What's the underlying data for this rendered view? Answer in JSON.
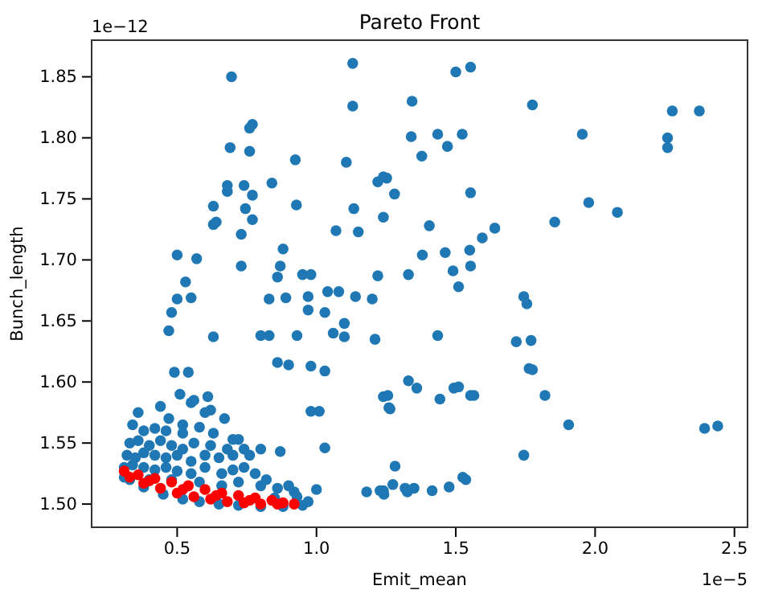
{
  "chart_data": {
    "type": "scatter",
    "title": "Pareto Front",
    "xlabel": "Emit_mean",
    "ylabel": "Bunch_length",
    "annotations": [
      "1e−5",
      "1e−12"
    ],
    "marker": "circle",
    "grid": false,
    "xlim": [
      0.193,
      2.547
    ],
    "xticks": [
      {
        "value": 0.5,
        "label": "0.5"
      },
      {
        "value": 1.0,
        "label": "1.0"
      },
      {
        "value": 1.5,
        "label": "1.5"
      },
      {
        "value": 2.0,
        "label": "2.0"
      },
      {
        "value": 2.5,
        "label": "2.5"
      }
    ],
    "ylim": [
      1.481,
      1.88
    ],
    "yticks": [
      {
        "value": 1.5,
        "label": "1.50"
      },
      {
        "value": 1.55,
        "label": "1.55"
      },
      {
        "value": 1.6,
        "label": "1.60"
      },
      {
        "value": 1.65,
        "label": "1.65"
      },
      {
        "value": 1.7,
        "label": "1.70"
      },
      {
        "value": 1.75,
        "label": "1.75"
      },
      {
        "value": 1.8,
        "label": "1.80"
      },
      {
        "value": 1.85,
        "label": "1.85"
      }
    ],
    "series": [
      {
        "color": "#1f77b4",
        "x": [
          0.695,
          1.13,
          1.13,
          0.77,
          0.76,
          0.69,
          0.76,
          1.107,
          0.924,
          0.68,
          0.74,
          0.68,
          0.77,
          0.84,
          0.63,
          0.745,
          0.928,
          0.63,
          0.64,
          0.77,
          0.73,
          1.134,
          1.15,
          1.07,
          1.22,
          1.24,
          1.24,
          0.5,
          0.57,
          0.73,
          0.53,
          0.5,
          0.55,
          0.48,
          0.47,
          0.63,
          0.88,
          0.87,
          0.86,
          0.95,
          0.98,
          0.83,
          0.89,
          0.97,
          0.97,
          1.03,
          1.04,
          1.08,
          1.1,
          1.06,
          1.1,
          1.14,
          1.2,
          1.22,
          1.21,
          0.8,
          0.83,
          0.93,
          0.86,
          0.9,
          0.98,
          1.03,
          0.49,
          0.54,
          0.51,
          0.61,
          0.62,
          0.55,
          0.98,
          1.01,
          1.24,
          1.26,
          0.87,
          1.03,
          1.18,
          1.0,
          1.24,
          1.5,
          1.553,
          1.343,
          1.775,
          2.277,
          2.374,
          1.34,
          1.435,
          1.523,
          1.47,
          1.378,
          1.954,
          2.26,
          2.26,
          1.252,
          1.28,
          1.553,
          1.977,
          2.08,
          1.855,
          1.405,
          1.64,
          1.595,
          1.38,
          1.462,
          1.55,
          1.49,
          1.553,
          1.33,
          1.51,
          1.744,
          1.755,
          1.435,
          1.717,
          1.77,
          1.763,
          1.775,
          1.33,
          1.36,
          1.256,
          1.264,
          1.443,
          1.493,
          1.51,
          1.553,
          1.565,
          1.82,
          1.905,
          2.393,
          2.44,
          1.744,
          1.282,
          1.274,
          1.228,
          1.242,
          1.318,
          1.326,
          1.35,
          1.415,
          1.476,
          1.525,
          1.536,
          0.36,
          0.44,
          0.47,
          0.56,
          0.6,
          0.67,
          0.34,
          0.38,
          0.42,
          0.46,
          0.52,
          0.58,
          0.63,
          0.33,
          0.36,
          0.4,
          0.44,
          0.48,
          0.52,
          0.56,
          0.62,
          0.7,
          0.72,
          0.32,
          0.35,
          0.38,
          0.42,
          0.46,
          0.5,
          0.55,
          0.6,
          0.65,
          0.7,
          0.76,
          0.8,
          0.31,
          0.34,
          0.38,
          0.42,
          0.46,
          0.5,
          0.55,
          0.6,
          0.66,
          0.7,
          0.74,
          0.78,
          0.33,
          0.4,
          0.48,
          0.58,
          0.66,
          0.72,
          0.8,
          0.86,
          0.9,
          0.92,
          0.31,
          0.38,
          0.45,
          0.52,
          0.58,
          0.65,
          0.72,
          0.8,
          0.88,
          0.95,
          0.97,
          0.85,
          0.93,
          0.52,
          0.68,
          0.74,
          0.82
        ],
        "values": [
          1.85,
          1.861,
          1.826,
          1.811,
          1.808,
          1.792,
          1.789,
          1.78,
          1.782,
          1.761,
          1.761,
          1.756,
          1.753,
          1.763,
          1.744,
          1.742,
          1.745,
          1.729,
          1.731,
          1.733,
          1.721,
          1.742,
          1.723,
          1.724,
          1.764,
          1.768,
          1.735,
          1.704,
          1.701,
          1.695,
          1.682,
          1.668,
          1.669,
          1.657,
          1.642,
          1.637,
          1.709,
          1.695,
          1.686,
          1.688,
          1.688,
          1.668,
          1.669,
          1.67,
          1.659,
          1.657,
          1.674,
          1.674,
          1.648,
          1.64,
          1.637,
          1.67,
          1.668,
          1.687,
          1.635,
          1.638,
          1.638,
          1.638,
          1.616,
          1.614,
          1.613,
          1.609,
          1.608,
          1.608,
          1.59,
          1.588,
          1.577,
          1.583,
          1.576,
          1.576,
          1.588,
          1.579,
          1.543,
          1.546,
          1.51,
          1.512,
          1.511,
          1.854,
          1.858,
          1.83,
          1.827,
          1.822,
          1.822,
          1.801,
          1.803,
          1.803,
          1.793,
          1.785,
          1.803,
          1.8,
          1.792,
          1.767,
          1.754,
          1.755,
          1.747,
          1.739,
          1.731,
          1.728,
          1.726,
          1.718,
          1.704,
          1.706,
          1.708,
          1.691,
          1.695,
          1.688,
          1.678,
          1.67,
          1.664,
          1.638,
          1.633,
          1.634,
          1.611,
          1.61,
          1.601,
          1.595,
          1.589,
          1.578,
          1.586,
          1.595,
          1.596,
          1.589,
          1.589,
          1.589,
          1.565,
          1.562,
          1.564,
          1.54,
          1.531,
          1.516,
          1.511,
          1.508,
          1.513,
          1.51,
          1.513,
          1.511,
          1.514,
          1.522,
          1.52,
          1.575,
          1.58,
          1.57,
          1.585,
          1.575,
          1.57,
          1.565,
          1.56,
          1.562,
          1.56,
          1.558,
          1.563,
          1.558,
          1.55,
          1.552,
          1.548,
          1.552,
          1.548,
          1.545,
          1.55,
          1.548,
          1.553,
          1.553,
          1.54,
          1.538,
          1.542,
          1.54,
          1.538,
          1.54,
          1.535,
          1.54,
          1.538,
          1.54,
          1.54,
          1.545,
          1.53,
          1.532,
          1.53,
          1.528,
          1.53,
          1.527,
          1.525,
          1.53,
          1.525,
          1.528,
          1.53,
          1.525,
          1.52,
          1.52,
          1.52,
          1.518,
          1.515,
          1.518,
          1.515,
          1.513,
          1.515,
          1.51,
          1.522,
          1.514,
          1.508,
          1.504,
          1.502,
          1.5,
          1.499,
          1.498,
          1.498,
          1.499,
          1.502,
          1.505,
          1.506,
          1.565,
          1.545,
          1.545,
          1.52
        ]
      },
      {
        "color": "#ff0000",
        "x": [
          0.31,
          0.36,
          0.42,
          0.48,
          0.54,
          0.6,
          0.66,
          0.72,
          0.78,
          0.84,
          0.33,
          0.38,
          0.44,
          0.5,
          0.56,
          0.62,
          0.68,
          0.74,
          0.8,
          0.86,
          0.92,
          0.4,
          0.52,
          0.64,
          0.76,
          0.88
        ],
        "values": [
          1.527,
          1.524,
          1.521,
          1.518,
          1.515,
          1.512,
          1.509,
          1.507,
          1.505,
          1.503,
          1.522,
          1.517,
          1.513,
          1.509,
          1.506,
          1.504,
          1.502,
          1.501,
          1.5,
          1.5,
          1.5,
          1.519,
          1.512,
          1.507,
          1.503,
          1.501
        ]
      }
    ]
  }
}
